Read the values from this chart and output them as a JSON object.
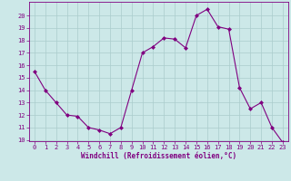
{
  "x": [
    0,
    1,
    2,
    3,
    4,
    5,
    6,
    7,
    8,
    9,
    10,
    11,
    12,
    13,
    14,
    15,
    16,
    17,
    18,
    19,
    20,
    21,
    22,
    23
  ],
  "y": [
    15.5,
    14.0,
    13.0,
    12.0,
    11.9,
    11.0,
    10.8,
    10.5,
    11.0,
    14.0,
    17.0,
    17.5,
    18.2,
    18.1,
    17.4,
    20.0,
    20.5,
    19.1,
    18.9,
    14.2,
    12.5,
    13.0,
    11.0,
    9.8
  ],
  "line_color": "#800080",
  "marker": "D",
  "marker_size": 2.0,
  "bg_color": "#cce8e8",
  "grid_color": "#aacccc",
  "xlabel": "Windchill (Refroidissement éolien,°C)",
  "ylim": [
    10,
    21
  ],
  "xlim": [
    -0.5,
    23.5
  ],
  "yticks": [
    10,
    11,
    12,
    13,
    14,
    15,
    16,
    17,
    18,
    19,
    20
  ],
  "xticks": [
    0,
    1,
    2,
    3,
    4,
    5,
    6,
    7,
    8,
    9,
    10,
    11,
    12,
    13,
    14,
    15,
    16,
    17,
    18,
    19,
    20,
    21,
    22,
    23
  ],
  "tick_color": "#800080",
  "label_fontsize": 5.5,
  "tick_fontsize": 5.0
}
